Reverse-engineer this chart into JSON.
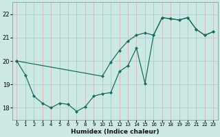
{
  "xlabel": "Humidex (Indice chaleur)",
  "xlim": [
    -0.5,
    23.5
  ],
  "ylim": [
    17.5,
    22.5
  ],
  "yticks": [
    18,
    19,
    20,
    21,
    22
  ],
  "xticks": [
    0,
    1,
    2,
    3,
    4,
    5,
    6,
    7,
    8,
    9,
    10,
    11,
    12,
    13,
    14,
    15,
    16,
    17,
    18,
    19,
    20,
    21,
    22,
    23
  ],
  "background_color": "#cce8e4",
  "grid_color": "#aacfcb",
  "line_color": "#1a6b5e",
  "line1_x": [
    0,
    1,
    2,
    3,
    4,
    5,
    6,
    7,
    8,
    9,
    10,
    11,
    12,
    13,
    14,
    15,
    16,
    17,
    18,
    19,
    20,
    21,
    22,
    23
  ],
  "line1_y": [
    20.0,
    19.4,
    18.5,
    18.2,
    18.0,
    18.2,
    18.15,
    17.85,
    18.05,
    18.5,
    18.6,
    18.65,
    19.55,
    19.8,
    20.55,
    19.05,
    21.1,
    21.85,
    21.8,
    21.75,
    21.85,
    21.35,
    21.1,
    21.25
  ],
  "line2_x": [
    0,
    10,
    11,
    12,
    13,
    14,
    15,
    16,
    17,
    18,
    19,
    20,
    21,
    22,
    23
  ],
  "line2_y": [
    20.0,
    19.35,
    19.95,
    20.45,
    20.85,
    21.1,
    21.2,
    21.1,
    21.85,
    21.8,
    21.75,
    21.85,
    21.35,
    21.1,
    21.25
  ]
}
